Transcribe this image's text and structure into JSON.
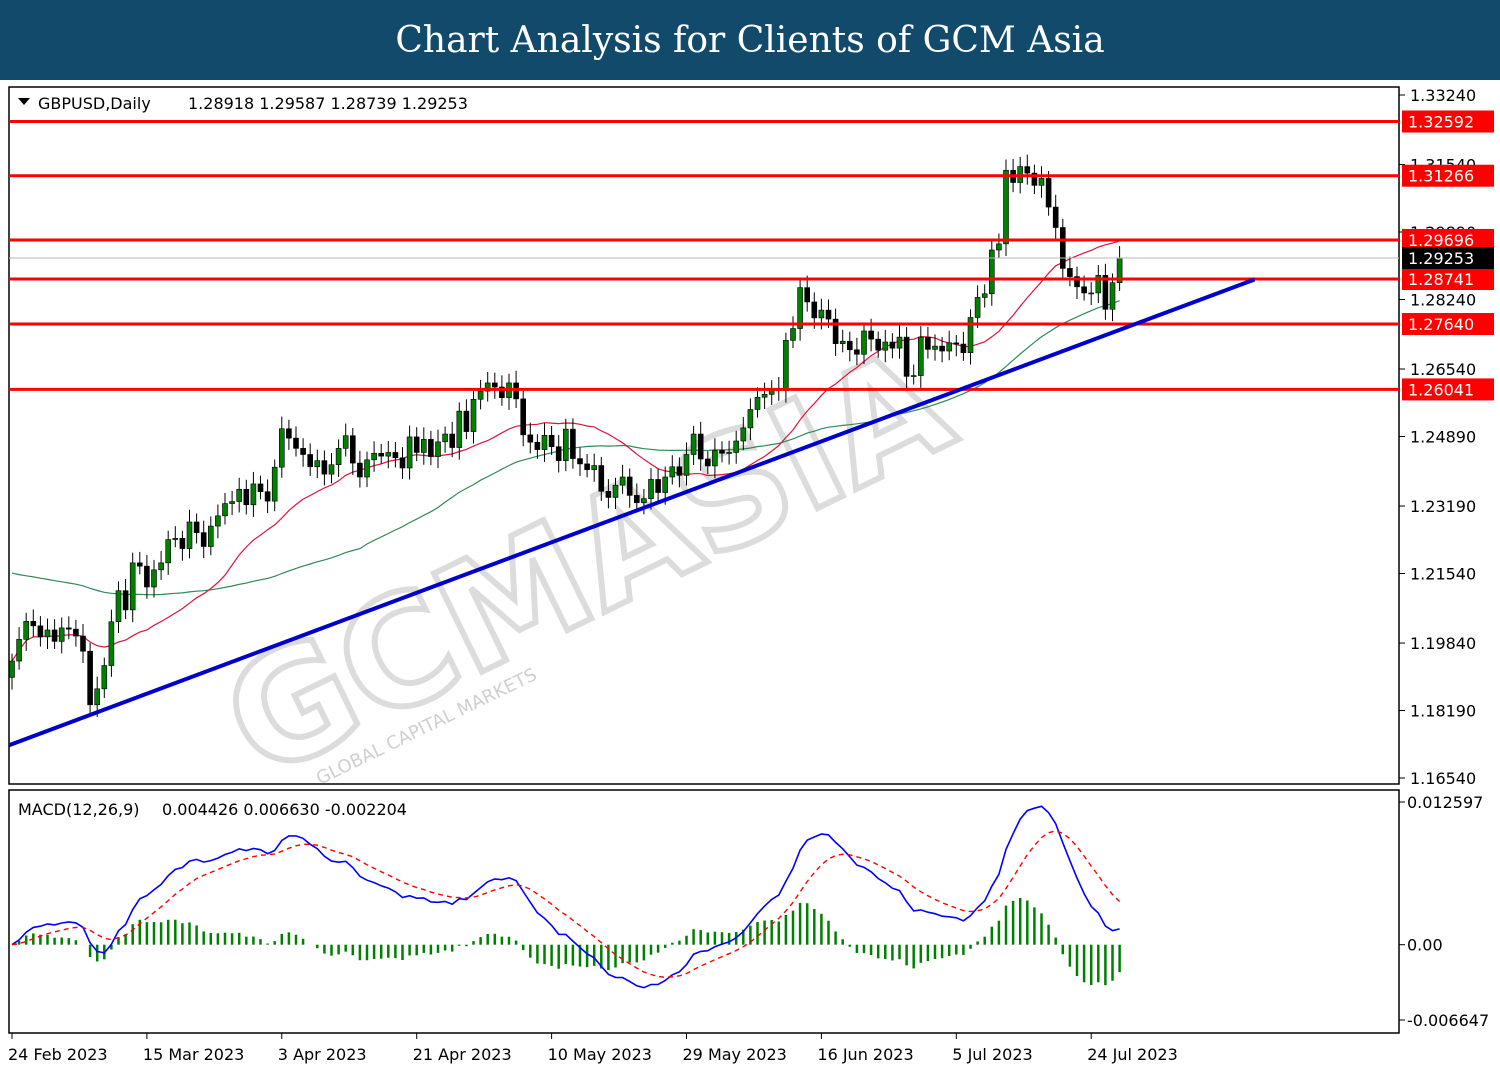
{
  "banner": {
    "title": "Chart Analysis for Clients of GCM Asia"
  },
  "watermark": {
    "brand": "GCMASIA",
    "sub": "GLOBAL CAPITAL MARKETS"
  },
  "chart_data": [
    {
      "type": "candlestick",
      "instrument_label": "GBPUSD,Daily",
      "ohlc_header": [
        "1.28918",
        "1.29587",
        "1.28739",
        "1.29253"
      ],
      "ylim": [
        1.1654,
        1.3324
      ],
      "y_ticks": [
        "1.33240",
        "1.31540",
        "1.29890",
        "1.28240",
        "1.26540",
        "1.24890",
        "1.23190",
        "1.21540",
        "1.19840",
        "1.18190",
        "1.16540"
      ],
      "x_tick_labels": [
        "24 Feb 2023",
        "15 Mar 2023",
        "3 Apr 2023",
        "21 Apr 2023",
        "10 May 2023",
        "29 May 2023",
        "16 Jun 2023",
        "5 Jul 2023",
        "24 Jul 2023"
      ],
      "x_tick_index": [
        0,
        19,
        38,
        57,
        76,
        95,
        114,
        133,
        152
      ],
      "levels": [
        {
          "value": 1.32592,
          "label": "1.32592"
        },
        {
          "value": 1.31266,
          "label": "1.31266"
        },
        {
          "value": 1.29696,
          "label": "1.29696"
        },
        {
          "value": 1.28741,
          "label": "1.28741"
        },
        {
          "value": 1.2764,
          "label": "1.27640"
        },
        {
          "value": 1.26041,
          "label": "1.26041"
        }
      ],
      "current_price": {
        "value": 1.29253,
        "label": "1.29253"
      },
      "trendline": {
        "from": {
          "index": 0,
          "value": 1.1734
        },
        "to": {
          "index": 175,
          "value": 1.2873
        }
      },
      "closes": [
        1.194,
        1.1993,
        1.2037,
        1.2026,
        1.1999,
        1.2016,
        1.1988,
        1.2021,
        1.2018,
        1.2001,
        1.1964,
        1.1833,
        1.1872,
        1.1929,
        1.2036,
        1.2112,
        1.2065,
        1.218,
        1.2172,
        1.2121,
        1.2163,
        1.218,
        1.2237,
        1.224,
        1.2215,
        1.228,
        1.2254,
        1.222,
        1.227,
        1.2295,
        1.2325,
        1.233,
        1.236,
        1.2322,
        1.2373,
        1.2354,
        1.2331,
        1.2414,
        1.2508,
        1.2485,
        1.246,
        1.2445,
        1.2415,
        1.243,
        1.2397,
        1.242,
        1.246,
        1.2491,
        1.2424,
        1.239,
        1.2432,
        1.2448,
        1.2441,
        1.245,
        1.2437,
        1.2412,
        1.2488,
        1.245,
        1.2482,
        1.244,
        1.2476,
        1.2495,
        1.2462,
        1.2551,
        1.2501,
        1.258,
        1.26,
        1.262,
        1.261,
        1.2584,
        1.262,
        1.2581,
        1.2493,
        1.2475,
        1.2457,
        1.2492,
        1.2464,
        1.243,
        1.2507,
        1.2435,
        1.2422,
        1.2408,
        1.2418,
        1.2355,
        1.234,
        1.237,
        1.239,
        1.2345,
        1.2327,
        1.2337,
        1.2384,
        1.2352,
        1.239,
        1.2415,
        1.2394,
        1.2445,
        1.2495,
        1.2434,
        1.2417,
        1.2455,
        1.2448,
        1.245,
        1.2478,
        1.251,
        1.2555,
        1.2585,
        1.2592,
        1.2605,
        1.2601,
        1.2724,
        1.2753,
        1.2853,
        1.2818,
        1.2779,
        1.2798,
        1.2776,
        1.2716,
        1.2722,
        1.2701,
        1.269,
        1.2747,
        1.2727,
        1.27,
        1.272,
        1.2705,
        1.2732,
        1.2636,
        1.2638,
        1.2732,
        1.2702,
        1.271,
        1.2698,
        1.2718,
        1.2715,
        1.2694,
        1.278,
        1.2829,
        1.2838,
        1.2945,
        1.296,
        1.314,
        1.311,
        1.3149,
        1.3133,
        1.3103,
        1.312,
        1.305,
        1.3,
        1.29,
        1.288,
        1.2855,
        1.284,
        1.284,
        1.2883,
        1.28,
        1.2865,
        1.2925
      ]
    },
    {
      "type": "macd",
      "label": "MACD(12,26,9)",
      "values_header": [
        "0.004426",
        "0.006630",
        "-0.002204"
      ],
      "y_ticks": [
        "0.012597",
        "0.00",
        "-0.006647"
      ],
      "ylim": [
        -0.006647,
        0.012597
      ]
    }
  ],
  "colors": {
    "banner": "#124a6c",
    "level": "#ff0000",
    "trendline": "#0000cc",
    "ma_fast": "#dc143c",
    "ma_slow": "#2e8b57",
    "macd": "#0000ff",
    "signal": "#ff0000",
    "hist": "#008000",
    "bull": "#008000",
    "bear": "#000000"
  }
}
